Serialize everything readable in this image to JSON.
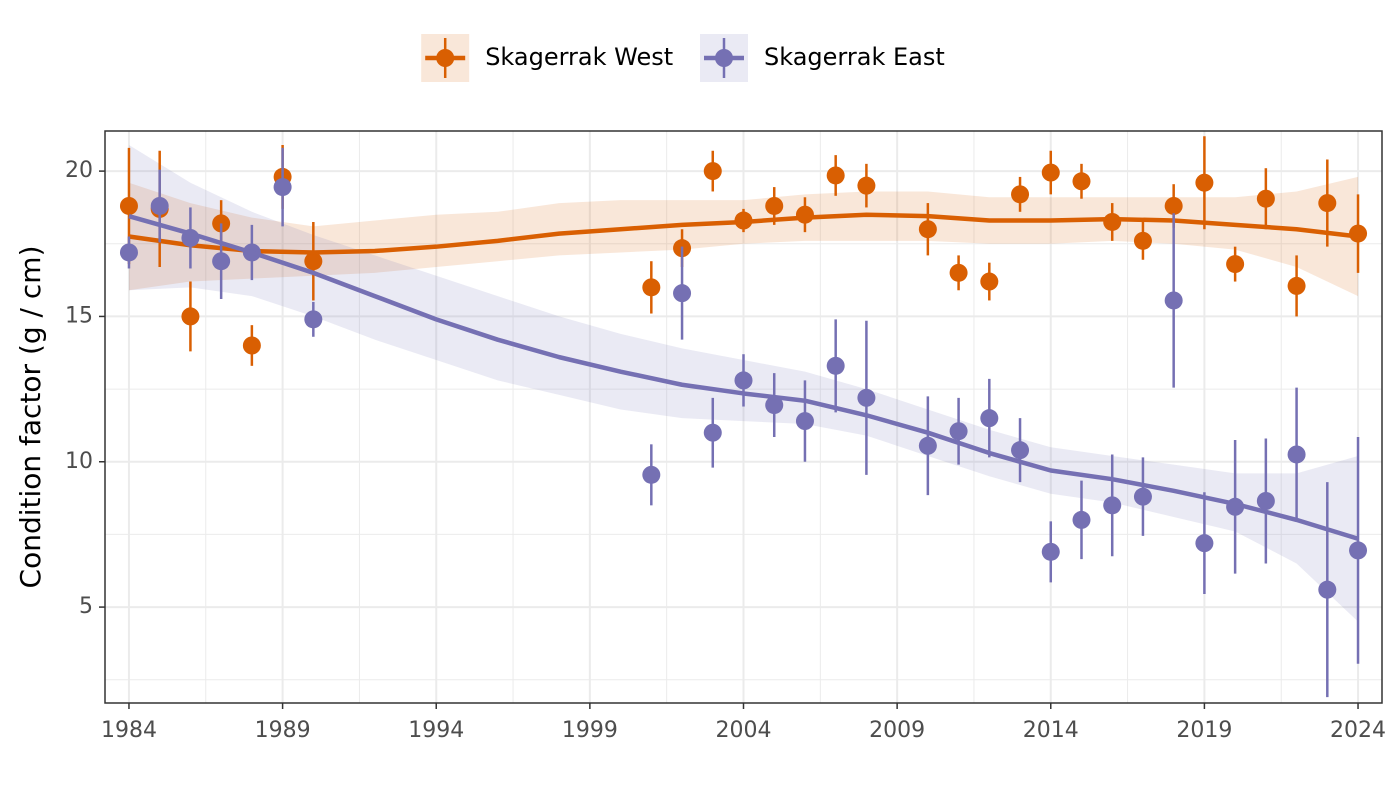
{
  "chart_data": {
    "type": "scatter",
    "y_label": "Condition factor (g / cm)",
    "xlim": [
      1983.22,
      2024.78
    ],
    "ylim": [
      1.7,
      21.38
    ],
    "xticks": [
      1984,
      1989,
      1994,
      1999,
      2004,
      2009,
      2014,
      2019,
      2024
    ],
    "yticks": [
      5,
      10,
      15,
      20
    ],
    "grid": true,
    "legend_position": "top",
    "series": [
      {
        "name": "Skagerrak West",
        "color": "#d95f02",
        "x": [
          1984,
          1985,
          1986,
          1987,
          1988,
          1989,
          1990,
          2001,
          2002,
          2003,
          2004,
          2005,
          2006,
          2007,
          2008,
          2010,
          2011,
          2012,
          2013,
          2014,
          2015,
          2016,
          2017,
          2018,
          2019,
          2020,
          2021,
          2022,
          2023,
          2024
        ],
        "values": [
          18.8,
          18.7,
          15.0,
          18.2,
          14.0,
          19.8,
          16.9,
          16.0,
          17.35,
          20.0,
          18.3,
          18.8,
          18.5,
          19.85,
          19.5,
          18.0,
          16.5,
          16.2,
          19.2,
          19.95,
          19.65,
          18.25,
          17.6,
          18.8,
          19.6,
          16.8,
          19.05,
          16.05,
          18.9,
          17.85
        ],
        "errors": [
          2.0,
          2.0,
          1.2,
          0.8,
          0.7,
          1.1,
          1.35,
          0.9,
          0.65,
          0.7,
          0.4,
          0.65,
          0.6,
          0.7,
          0.75,
          0.9,
          0.6,
          0.65,
          0.6,
          0.75,
          0.6,
          0.65,
          0.65,
          0.75,
          1.6,
          0.6,
          1.05,
          1.05,
          1.5,
          1.35
        ],
        "trend": {
          "x": [
            1984,
            1986,
            1988,
            1990,
            1992,
            1994,
            1996,
            1998,
            2000,
            2002,
            2004,
            2006,
            2008,
            2010,
            2012,
            2014,
            2016,
            2018,
            2020,
            2022,
            2024
          ],
          "values": [
            17.75,
            17.45,
            17.25,
            17.2,
            17.25,
            17.4,
            17.6,
            17.85,
            18.0,
            18.15,
            18.25,
            18.4,
            18.5,
            18.45,
            18.3,
            18.3,
            18.35,
            18.3,
            18.15,
            18.0,
            17.75
          ],
          "lower": [
            15.9,
            16.2,
            16.3,
            16.4,
            16.5,
            16.7,
            16.9,
            17.1,
            17.2,
            17.3,
            17.5,
            17.6,
            17.6,
            17.6,
            17.5,
            17.5,
            17.6,
            17.5,
            17.3,
            16.7,
            15.7
          ],
          "upper": [
            19.6,
            18.9,
            18.4,
            18.1,
            18.3,
            18.5,
            18.6,
            18.9,
            19.0,
            19.0,
            19.0,
            19.2,
            19.3,
            19.3,
            19.1,
            19.1,
            19.1,
            19.1,
            19.1,
            19.3,
            19.8
          ]
        }
      },
      {
        "name": "Skagerrak East",
        "color": "#7570b3",
        "x": [
          1984,
          1985,
          1986,
          1987,
          1988,
          1989,
          1990,
          2001,
          2002,
          2003,
          2004,
          2005,
          2006,
          2007,
          2008,
          2010,
          2011,
          2012,
          2013,
          2014,
          2015,
          2016,
          2017,
          2018,
          2019,
          2020,
          2021,
          2022,
          2023,
          2024
        ],
        "values": [
          17.2,
          18.8,
          17.7,
          16.9,
          17.2,
          19.45,
          14.9,
          9.55,
          15.8,
          11.0,
          12.8,
          11.95,
          11.4,
          13.3,
          12.2,
          10.55,
          11.05,
          11.5,
          10.4,
          6.9,
          8.0,
          8.5,
          8.8,
          15.55,
          7.2,
          8.45,
          8.65,
          10.25,
          5.6,
          6.95
        ],
        "errors": [
          0.55,
          1.25,
          1.05,
          1.3,
          0.95,
          1.35,
          0.6,
          1.05,
          1.6,
          1.2,
          0.9,
          1.1,
          1.4,
          1.6,
          2.65,
          1.7,
          1.15,
          1.35,
          1.1,
          1.05,
          1.35,
          1.75,
          1.35,
          3.0,
          1.75,
          2.3,
          2.15,
          2.3,
          3.7,
          3.9
        ],
        "trend": {
          "x": [
            1984,
            1986,
            1988,
            1990,
            1992,
            1994,
            1996,
            1998,
            2000,
            2002,
            2004,
            2006,
            2008,
            2010,
            2012,
            2014,
            2016,
            2018,
            2020,
            2022,
            2024
          ],
          "values": [
            18.45,
            17.85,
            17.2,
            16.5,
            15.7,
            14.9,
            14.2,
            13.6,
            13.1,
            12.65,
            12.35,
            12.1,
            11.6,
            11.0,
            10.3,
            9.7,
            9.4,
            9.0,
            8.55,
            8.0,
            7.35
          ],
          "lower": [
            15.9,
            16.0,
            15.7,
            15.0,
            14.2,
            13.5,
            12.8,
            12.3,
            11.8,
            11.5,
            11.4,
            11.3,
            10.9,
            10.2,
            9.5,
            8.9,
            8.6,
            8.1,
            7.6,
            6.5,
            4.5
          ],
          "upper": [
            20.9,
            19.6,
            18.6,
            17.8,
            17.1,
            16.4,
            15.7,
            15.0,
            14.4,
            13.9,
            13.5,
            13.1,
            12.5,
            11.8,
            11.1,
            10.5,
            10.2,
            9.9,
            9.6,
            9.6,
            10.2
          ]
        }
      }
    ]
  }
}
